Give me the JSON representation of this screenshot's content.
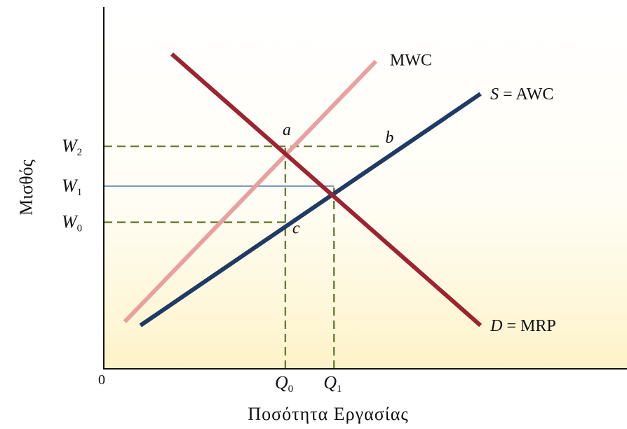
{
  "chart_data": {
    "type": "line",
    "ylabel": "Μισθός",
    "xlabel": "Ποσότητα Εργασίας",
    "origin_label": "0",
    "xlim": [
      0,
      10
    ],
    "ylim": [
      0,
      10
    ],
    "x_ticks": [
      {
        "label": "Q",
        "sub": "0",
        "value": 3.47
      },
      {
        "label": "Q",
        "sub": "1",
        "value": 4.4
      }
    ],
    "y_ticks": [
      {
        "label": "W",
        "sub": "2",
        "value": 6.15
      },
      {
        "label": "W",
        "sub": "1",
        "value": 5.05
      },
      {
        "label": "W",
        "sub": "0",
        "value": 4.05
      }
    ],
    "series": [
      {
        "name": "MWC",
        "color": "#e8a0a0",
        "points": [
          [
            0.4,
            1.3
          ],
          [
            5.2,
            8.5
          ]
        ]
      },
      {
        "name": "S = AWC",
        "color": "#1f3a63",
        "points": [
          [
            0.7,
            1.2
          ],
          [
            7.2,
            7.6
          ]
        ]
      },
      {
        "name": "D = MRP",
        "color": "#9e2330",
        "points": [
          [
            1.3,
            8.7
          ],
          [
            7.2,
            1.2
          ]
        ]
      }
    ],
    "points": [
      {
        "label": "a",
        "x": 3.47,
        "y": 6.15
      },
      {
        "label": "b",
        "x": 5.3,
        "y": 6.15
      },
      {
        "label": "c",
        "x": 3.47,
        "y": 4.05
      }
    ],
    "guides": [
      {
        "kind": "dashed",
        "color": "#6b7f3a",
        "from": [
          0,
          6.15
        ],
        "to": [
          5.3,
          6.15
        ]
      },
      {
        "kind": "dashed",
        "color": "#6b7f3a",
        "from": [
          0,
          4.05
        ],
        "to": [
          3.47,
          4.05
        ]
      },
      {
        "kind": "solid",
        "color": "#5a7fb0",
        "from": [
          0,
          5.05
        ],
        "to": [
          4.4,
          5.05
        ]
      },
      {
        "kind": "dashed",
        "color": "#6b7f3a",
        "from": [
          3.47,
          0
        ],
        "to": [
          3.47,
          6.15
        ]
      },
      {
        "kind": "dashed",
        "color": "#6b7f3a",
        "from": [
          4.4,
          0
        ],
        "to": [
          4.4,
          5.05
        ]
      }
    ],
    "grid": false,
    "legend": "none"
  }
}
